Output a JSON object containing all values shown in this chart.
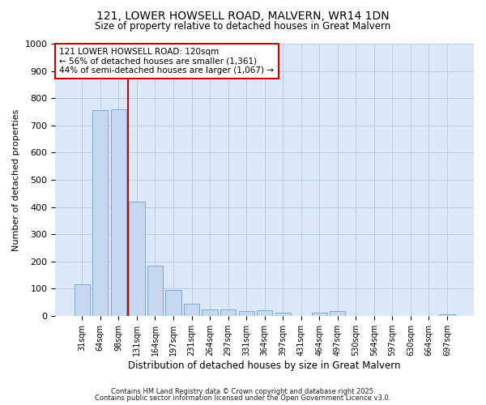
{
  "title1": "121, LOWER HOWSELL ROAD, MALVERN, WR14 1DN",
  "title2": "Size of property relative to detached houses in Great Malvern",
  "xlabel": "Distribution of detached houses by size in Great Malvern",
  "ylabel": "Number of detached properties",
  "categories": [
    "31sqm",
    "64sqm",
    "98sqm",
    "131sqm",
    "164sqm",
    "197sqm",
    "231sqm",
    "264sqm",
    "297sqm",
    "331sqm",
    "364sqm",
    "397sqm",
    "431sqm",
    "464sqm",
    "497sqm",
    "530sqm",
    "564sqm",
    "597sqm",
    "630sqm",
    "664sqm",
    "697sqm"
  ],
  "values": [
    115,
    755,
    760,
    420,
    185,
    95,
    45,
    22,
    22,
    18,
    20,
    10,
    0,
    12,
    18,
    0,
    0,
    0,
    0,
    0,
    5
  ],
  "bar_color": "#c5d8f0",
  "bar_edgecolor": "#7aadd4",
  "bar_linewidth": 0.7,
  "vline_x": 3.0,
  "vline_color": "#cc0000",
  "vline_linewidth": 1.4,
  "annotation_title": "121 LOWER HOWSELL ROAD: 120sqm",
  "annotation_line1": "← 56% of detached houses are smaller (1,361)",
  "annotation_line2": "44% of semi-detached houses are larger (1,067) →",
  "annotation_box_facecolor": "#ffffff",
  "annotation_box_edgecolor": "#cc0000",
  "ylim": [
    0,
    1000
  ],
  "yticks": [
    0,
    100,
    200,
    300,
    400,
    500,
    600,
    700,
    800,
    900,
    1000
  ],
  "fig_bg_color": "#ffffff",
  "plot_bg_color": "#dce8f8",
  "grid_color": "#b8cce4",
  "footer1": "Contains HM Land Registry data © Crown copyright and database right 2025.",
  "footer2": "Contains public sector information licensed under the Open Government Licence v3.0."
}
